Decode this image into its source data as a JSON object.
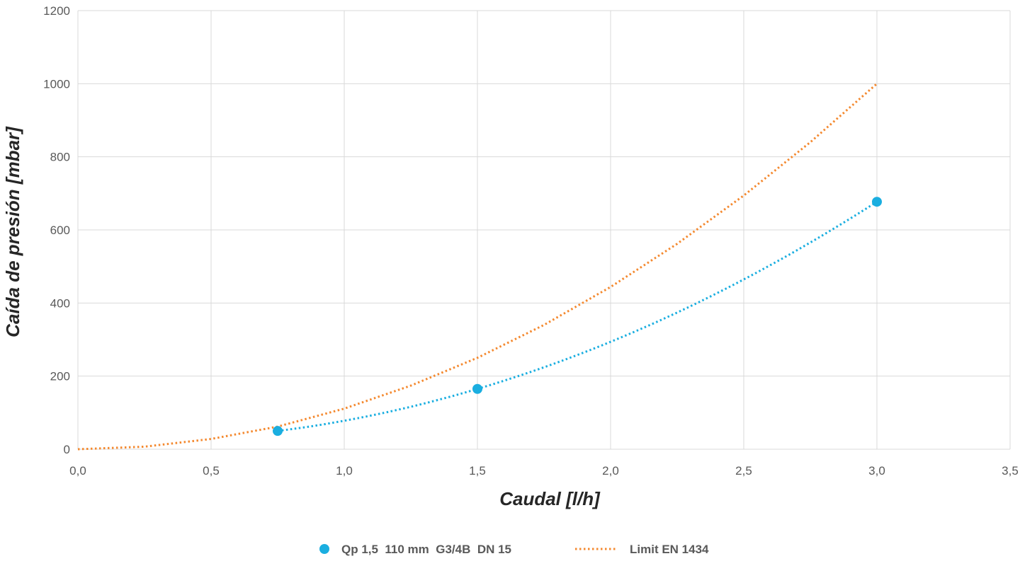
{
  "chart_data": {
    "type": "scatter",
    "title": "",
    "xlabel": "Caudal [l/h]",
    "ylabel": "Caída de presión [mbar]",
    "xlim": [
      0,
      3.5
    ],
    "ylim": [
      0,
      1200
    ],
    "x_ticks": [
      0,
      0.5,
      1.0,
      1.5,
      2.0,
      2.5,
      3.0,
      3.5
    ],
    "x_tick_labels": [
      "0,0",
      "0,5",
      "1,0",
      "1,5",
      "2,0",
      "2,5",
      "3,0",
      "3,5"
    ],
    "y_ticks": [
      0,
      200,
      400,
      600,
      800,
      1000,
      1200
    ],
    "y_tick_labels": [
      "0",
      "200",
      "400",
      "600",
      "800",
      "1000",
      "1200"
    ],
    "grid": true,
    "legend_position": "bottom",
    "series": [
      {
        "name": "Qp 1,5  110 mm  G3/4B  DN 15",
        "kind": "markers-with-dotted-trendline",
        "color": "#1aaee0",
        "x": [
          0.75,
          1.5,
          3.0
        ],
        "y": [
          50,
          165,
          677
        ]
      },
      {
        "name": "Limit EN 1434",
        "kind": "dotted-line",
        "color": "#f4892f",
        "x": [
          0,
          0.25,
          0.5,
          0.75,
          1.0,
          1.25,
          1.5,
          1.75,
          2.0,
          2.25,
          2.5,
          2.75,
          3.0
        ],
        "y": [
          0,
          7,
          28,
          62,
          111,
          174,
          250,
          340,
          444,
          562,
          694,
          840,
          1000
        ]
      }
    ]
  }
}
